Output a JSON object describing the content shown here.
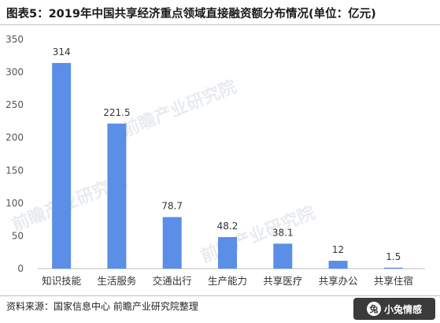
{
  "header": {
    "title": "图表5：2019年中国共享经济重点领域直接融资额分布情况(单位：亿元)"
  },
  "footer": {
    "source": "资料来源：国家信息中心 前瞻产业研究院整理",
    "logo_text": "小兔情感"
  },
  "watermarks": [
    "前瞻产业研究院",
    "前瞻产业研究院",
    "前瞻产业研究院"
  ],
  "colors": {
    "bar": "#5b8ee6",
    "grid": "#e3e3e3",
    "axis_text": "#555555"
  },
  "chart_data": {
    "type": "bar",
    "title": "",
    "xlabel": "",
    "ylabel": "",
    "categories": [
      "知识技能",
      "生活服务",
      "交通出行",
      "生产能力",
      "共享医疗",
      "共享办公",
      "共享住宿"
    ],
    "values": [
      314,
      221.5,
      78.7,
      48.2,
      38.1,
      12,
      1.5
    ],
    "value_labels": [
      "314",
      "221.5",
      "78.7",
      "48.2",
      "38.1",
      "12",
      "1.5"
    ],
    "ylim": [
      0,
      350
    ],
    "yticks": [
      0,
      50,
      100,
      150,
      200,
      250,
      300,
      350
    ],
    "grid": false,
    "legend": "none"
  }
}
